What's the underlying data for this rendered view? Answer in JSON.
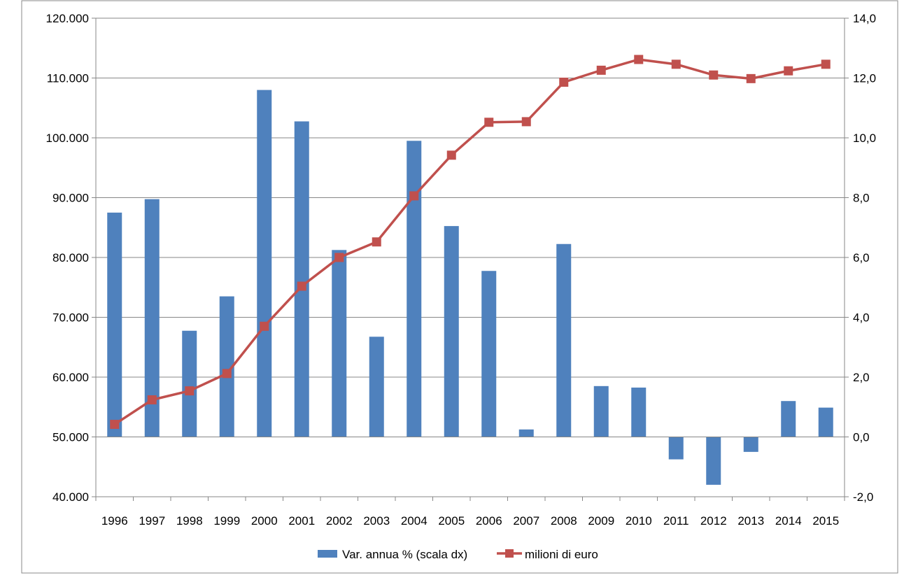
{
  "chart_data": {
    "type": "bar",
    "title": "",
    "categories": [
      "1996",
      "1997",
      "1998",
      "1999",
      "2000",
      "2001",
      "2002",
      "2003",
      "2004",
      "2005",
      "2006",
      "2007",
      "2008",
      "2009",
      "2010",
      "2011",
      "2012",
      "2013",
      "2014",
      "2015"
    ],
    "series": [
      {
        "name": "Var. annua % (scala dx)",
        "type": "bar",
        "axis": "right",
        "color": "#4F81BD",
        "values": [
          7.5,
          7.95,
          3.55,
          4.7,
          11.6,
          10.55,
          6.25,
          3.35,
          9.9,
          7.05,
          5.55,
          0.25,
          6.45,
          1.7,
          1.65,
          -0.75,
          -1.6,
          -0.5,
          1.2,
          0.98
        ]
      },
      {
        "name": "milioni di euro",
        "type": "line",
        "axis": "left",
        "color": "#C0504D",
        "values": [
          52100,
          56200,
          57700,
          60600,
          68500,
          75200,
          80000,
          82600,
          90300,
          97100,
          102600,
          102700,
          109300,
          111300,
          113100,
          112300,
          110500,
          109900,
          111200,
          112300
        ]
      }
    ],
    "y_left": {
      "min": 40000,
      "max": 120000,
      "step": 10000,
      "tick_labels": [
        "40.000",
        "50.000",
        "60.000",
        "70.000",
        "80.000",
        "90.000",
        "100.000",
        "110.000",
        "120.000"
      ]
    },
    "y_right": {
      "min": -2,
      "max": 14,
      "step": 2,
      "tick_labels": [
        "-2,0",
        "0,0",
        "2,0",
        "4,0",
        "6,0",
        "8,0",
        "10,0",
        "12,0",
        "14,0"
      ]
    },
    "grid": true,
    "legend_position": "bottom"
  }
}
